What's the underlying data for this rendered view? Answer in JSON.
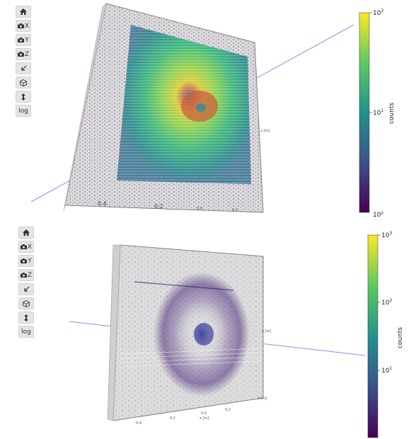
{
  "toolbar": {
    "home_icon": "home-icon",
    "cam_x": "X",
    "cam_y": "Y",
    "cam_z": "Z",
    "log_label": "log"
  },
  "top_plot": {
    "colorbar": {
      "label": "counts",
      "tick_max": "10",
      "tick_max_exp": "2",
      "tick_mid": "10",
      "tick_mid_exp": "1",
      "tick_min": "10",
      "tick_min_exp": "0"
    },
    "x_ticks": [
      "0.4",
      "0.2",
      "0.0",
      "0.2"
    ],
    "side_label": "y [m]"
  },
  "bottom_plot": {
    "colorbar": {
      "label": "counts",
      "tick_max": "10",
      "tick_max_exp": "3",
      "tick_mid": "10",
      "tick_mid_exp": "2",
      "tick_low": "10",
      "tick_low_exp": "1"
    },
    "x_ticks": [
      "0.4",
      "0.2",
      "0.0",
      "0.2"
    ],
    "x_axis_label": "x [m]",
    "side_label": "y [m]",
    "z_label": "z [m]"
  },
  "colors": {
    "toolbar_bg": "#e4e4e4",
    "panel_bg": "#d8d8d8",
    "beam": "#7f97e6"
  }
}
